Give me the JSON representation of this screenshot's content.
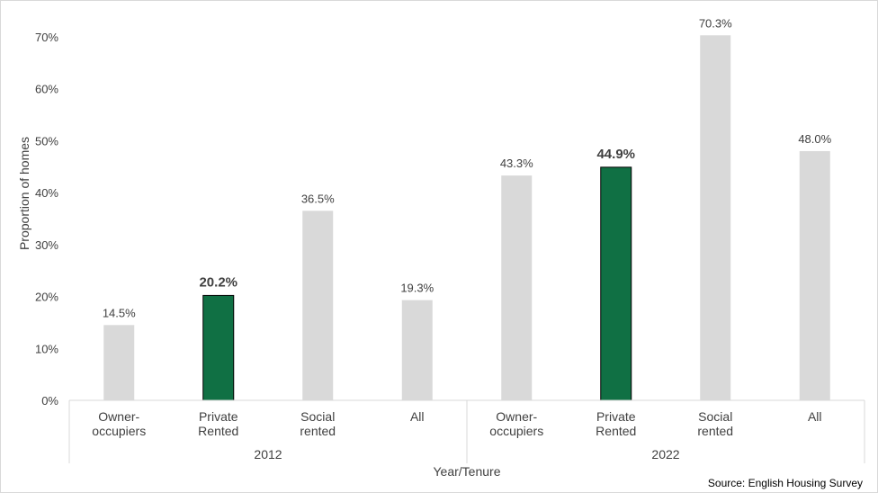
{
  "chart_data": {
    "type": "bar",
    "title": "",
    "ylabel": "Proportion of homes",
    "xlabel": "Year/Tenure",
    "ylim": [
      0,
      70
    ],
    "yticks": [
      0,
      10,
      20,
      30,
      40,
      50,
      60,
      70
    ],
    "ytick_suffix": "%",
    "grid": false,
    "groups": [
      {
        "name": "2012",
        "categories": [
          [
            "Owner-",
            "occupiers"
          ],
          [
            "Private",
            "Rented"
          ],
          [
            "Social",
            "rented"
          ],
          [
            "All"
          ]
        ],
        "values": [
          14.5,
          20.2,
          36.5,
          19.3
        ],
        "labels": [
          "14.5%",
          "20.2%",
          "36.5%",
          "19.3%"
        ],
        "highlight": [
          false,
          true,
          false,
          false
        ]
      },
      {
        "name": "2022",
        "categories": [
          [
            "Owner-",
            "occupiers"
          ],
          [
            "Private",
            "Rented"
          ],
          [
            "Social",
            "rented"
          ],
          [
            "All"
          ]
        ],
        "values": [
          43.3,
          44.9,
          70.3,
          48.0
        ],
        "labels": [
          "43.3%",
          "44.9%",
          "70.3%",
          "48.0%"
        ],
        "highlight": [
          false,
          true,
          false,
          false
        ]
      }
    ],
    "colors": {
      "bar": "#d9d9d9",
      "highlight": "#107044",
      "highlight_border": "#000000",
      "axis": "#d9d9d9"
    }
  },
  "source": "Source: English Housing Survey"
}
